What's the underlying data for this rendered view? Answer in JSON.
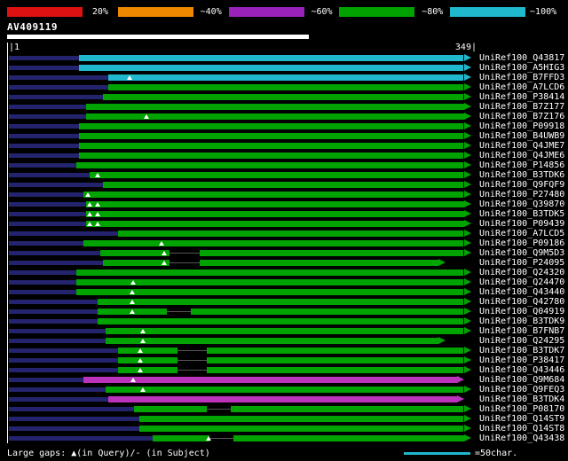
{
  "palette": {
    "background": "#000000",
    "red": "#dd1111",
    "orange": "#ee8800",
    "purple": "#9922bb",
    "green": "#00a300",
    "cyan": "#1fb8cc",
    "magenta": "#bb33bb",
    "navy": "#24246e",
    "white": "#ffffff"
  },
  "scale_bar": {
    "segments": [
      {
        "color": "red",
        "label": "20%"
      },
      {
        "color": "orange",
        "label": "~40%"
      },
      {
        "color": "purple",
        "label": "~60%"
      },
      {
        "color": "green",
        "label": "~80%"
      },
      {
        "color": "cyan",
        "label": "~100%"
      }
    ]
  },
  "query": {
    "name": "AV409119",
    "length": 349,
    "start_label": "|1",
    "end_label": "349|"
  },
  "legend": {
    "gaps_text": "Large gaps: ▲(in Query)/- (in Subject)",
    "scale_text": "=50char.",
    "scale_chars": 50,
    "query_gap_icon": "▲",
    "subject_gap_icon": "-"
  },
  "chart_data": {
    "type": "alignment-overview",
    "query_name": "AV409119",
    "query_length": 349,
    "identity_scale": [
      "20%",
      "~40%",
      "~60%",
      "~80%",
      "~100%"
    ],
    "hits": [
      {
        "label": "UniRef100_Q43817",
        "color": "cyan",
        "start": 54,
        "end": 349,
        "tri": [],
        "gaps": []
      },
      {
        "label": "UniRef100_A5HIG3",
        "color": "cyan",
        "start": 54,
        "end": 349,
        "tri": [],
        "gaps": []
      },
      {
        "label": "UniRef100_B7FFD3",
        "color": "cyan",
        "start": 76,
        "end": 349,
        "tri": [
          92
        ],
        "gaps": []
      },
      {
        "label": "UniRef100_A7LCD6",
        "color": "green",
        "start": 76,
        "end": 349,
        "tri": [],
        "gaps": []
      },
      {
        "label": "UniRef100_P38414",
        "color": "green",
        "start": 72,
        "end": 349,
        "tri": [],
        "gaps": []
      },
      {
        "label": "UniRef100_B7Z177",
        "color": "green",
        "start": 59,
        "end": 349,
        "tri": [],
        "gaps": []
      },
      {
        "label": "UniRef100_B7Z176",
        "color": "green",
        "start": 59,
        "end": 349,
        "tri": [
          105
        ],
        "gaps": []
      },
      {
        "label": "UniRef100_P09918",
        "color": "green",
        "start": 54,
        "end": 349,
        "tri": [],
        "gaps": []
      },
      {
        "label": "UniRef100_B4UWB9",
        "color": "green",
        "start": 54,
        "end": 349,
        "tri": [],
        "gaps": []
      },
      {
        "label": "UniRef100_Q4JME7",
        "color": "green",
        "start": 54,
        "end": 349,
        "tri": [],
        "gaps": []
      },
      {
        "label": "UniRef100_Q4JME6",
        "color": "green",
        "start": 54,
        "end": 349,
        "tri": [],
        "gaps": []
      },
      {
        "label": "UniRef100_P14856",
        "color": "green",
        "start": 52,
        "end": 349,
        "tri": [],
        "gaps": []
      },
      {
        "label": "UniRef100_B3TDK6",
        "color": "green",
        "start": 62,
        "end": 349,
        "tri": [
          68
        ],
        "gaps": []
      },
      {
        "label": "UniRef100_Q9FQF9",
        "color": "green",
        "start": 72,
        "end": 349,
        "tri": [],
        "gaps": []
      },
      {
        "label": "UniRef100_P27480",
        "color": "green",
        "start": 57,
        "end": 349,
        "tri": [
          61
        ],
        "gaps": []
      },
      {
        "label": "UniRef100_Q39870",
        "color": "green",
        "start": 59,
        "end": 349,
        "tri": [
          62,
          68
        ],
        "gaps": []
      },
      {
        "label": "UniRef100_B3TDK5",
        "color": "green",
        "start": 59,
        "end": 349,
        "tri": [
          62,
          68
        ],
        "gaps": []
      },
      {
        "label": "UniRef100_P09439",
        "color": "green",
        "start": 59,
        "end": 349,
        "tri": [
          62,
          68
        ],
        "gaps": []
      },
      {
        "label": "UniRef100_A7LCD5",
        "color": "green",
        "start": 83,
        "end": 349,
        "tri": [],
        "gaps": []
      },
      {
        "label": "UniRef100_P09186",
        "color": "green",
        "start": 57,
        "end": 349,
        "tri": [
          116
        ],
        "gaps": []
      },
      {
        "label": "UniRef100_Q9M5D3",
        "color": "green",
        "start": 70,
        "end": 349,
        "tri": [
          118
        ],
        "gaps": [
          [
            122,
            145
          ]
        ]
      },
      {
        "label": "UniRef100_P24095",
        "color": "green",
        "start": 72,
        "end": 330,
        "tri": [
          118
        ],
        "gaps": [
          [
            122,
            145
          ]
        ]
      },
      {
        "label": "UniRef100_Q24320",
        "color": "green",
        "start": 52,
        "end": 349,
        "tri": [],
        "gaps": []
      },
      {
        "label": "UniRef100_Q24470",
        "color": "green",
        "start": 52,
        "end": 349,
        "tri": [
          95
        ],
        "gaps": []
      },
      {
        "label": "UniRef100_Q43440",
        "color": "green",
        "start": 52,
        "end": 349,
        "tri": [
          94
        ],
        "gaps": []
      },
      {
        "label": "UniRef100_Q42780",
        "color": "green",
        "start": 68,
        "end": 349,
        "tri": [
          94
        ],
        "gaps": []
      },
      {
        "label": "UniRef100_Q04919",
        "color": "green",
        "start": 68,
        "end": 349,
        "tri": [
          94
        ],
        "gaps": [
          [
            120,
            138
          ]
        ]
      },
      {
        "label": "UniRef100_B3TDK9",
        "color": "green",
        "start": 68,
        "end": 349,
        "tri": [],
        "gaps": []
      },
      {
        "label": "UniRef100_B7FNB7",
        "color": "green",
        "start": 74,
        "end": 349,
        "tri": [
          102
        ],
        "gaps": []
      },
      {
        "label": "UniRef100_Q24295",
        "color": "green",
        "start": 74,
        "end": 330,
        "tri": [
          102
        ],
        "gaps": []
      },
      {
        "label": "UniRef100_B3TDK7",
        "color": "green",
        "start": 83,
        "end": 349,
        "tri": [
          100
        ],
        "gaps": [
          [
            128,
            150
          ]
        ]
      },
      {
        "label": "UniRef100_P38417",
        "color": "green",
        "start": 83,
        "end": 349,
        "tri": [
          100
        ],
        "gaps": [
          [
            128,
            150
          ]
        ]
      },
      {
        "label": "UniRef100_Q43446",
        "color": "green",
        "start": 83,
        "end": 349,
        "tri": [
          100
        ],
        "gaps": [
          [
            128,
            150
          ]
        ]
      },
      {
        "label": "UniRef100_Q9M684",
        "color": "magenta",
        "start": 57,
        "end": 344,
        "tri": [
          95
        ],
        "gaps": []
      },
      {
        "label": "UniRef100_Q9FEQ3",
        "color": "green",
        "start": 74,
        "end": 349,
        "tri": [
          102
        ],
        "gaps": []
      },
      {
        "label": "UniRef100_B3TDK4",
        "color": "magenta",
        "start": 76,
        "end": 344,
        "tri": [],
        "gaps": []
      },
      {
        "label": "UniRef100_P08170",
        "color": "green",
        "start": 95,
        "end": 349,
        "tri": [],
        "gaps": [
          [
            150,
            168
          ]
        ]
      },
      {
        "label": "UniRef100_Q14ST9",
        "color": "green",
        "start": 99,
        "end": 349,
        "tri": [],
        "gaps": []
      },
      {
        "label": "UniRef100_Q14ST8",
        "color": "green",
        "start": 99,
        "end": 349,
        "tri": [],
        "gaps": []
      },
      {
        "label": "UniRef100_Q43438",
        "color": "green",
        "start": 109,
        "end": 349,
        "tri": [
          152
        ],
        "gaps": [
          [
            152,
            170
          ]
        ]
      }
    ]
  }
}
